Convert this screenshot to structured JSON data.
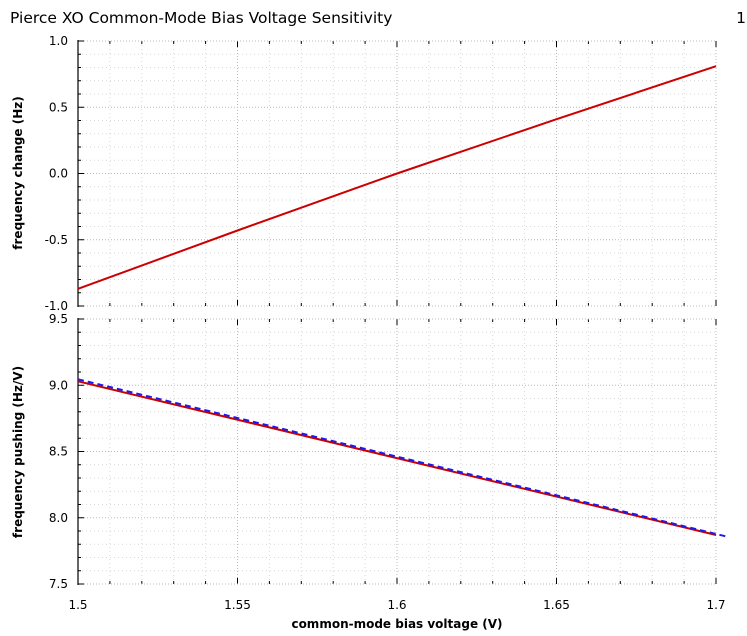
{
  "header": {
    "title": "Pierce XO Common-Mode Bias Voltage Sensitivity",
    "page_number": "1"
  },
  "colors": {
    "background": "#ffffff",
    "grid": "#b8b8b8",
    "axis": "#000000",
    "series_red": "#cc0000",
    "series_blue": "#1a1aee"
  },
  "chart_data": [
    {
      "type": "line",
      "title": "Pierce XO Common-Mode Bias Voltage Sensitivity",
      "ylabel": "frequency change (Hz)",
      "xlabel": "",
      "xlim": [
        1.5,
        1.7
      ],
      "ylim": [
        -1.0,
        1.0
      ],
      "y_ticks": [
        -1.0,
        -0.5,
        0.0,
        0.5,
        1.0
      ],
      "y_tick_labels": [
        "-1.0",
        "-0.5",
        "0.0",
        "0.5",
        "1.0"
      ],
      "grid": true,
      "series": [
        {
          "color": "#cc0000",
          "dash": "solid",
          "x": [
            1.5,
            1.55,
            1.6,
            1.65,
            1.7
          ],
          "y": [
            -0.87,
            -0.43,
            0.0,
            0.41,
            0.81
          ]
        }
      ]
    },
    {
      "type": "line",
      "ylabel": "frequency pushing (Hz/V)",
      "xlabel": "common-mode bias voltage (V)",
      "xlim": [
        1.5,
        1.7
      ],
      "ylim": [
        7.5,
        9.5
      ],
      "y_ticks": [
        7.5,
        8.0,
        8.5,
        9.0,
        9.5
      ],
      "y_tick_labels": [
        "7.5",
        "8.0",
        "8.5",
        "9.0",
        "9.5"
      ],
      "x_ticks": [
        1.5,
        1.55,
        1.6,
        1.65,
        1.7
      ],
      "x_tick_labels": [
        "1.5",
        "1.55",
        "1.6",
        "1.65",
        "1.7"
      ],
      "grid": true,
      "series": [
        {
          "color": "#cc0000",
          "dash": "solid",
          "x": [
            1.5,
            1.7
          ],
          "y": [
            9.03,
            7.87
          ]
        },
        {
          "color": "#1a1aee",
          "dash": "dashed",
          "x": [
            1.5,
            1.703
          ],
          "y": [
            9.045,
            7.86
          ]
        }
      ]
    }
  ]
}
